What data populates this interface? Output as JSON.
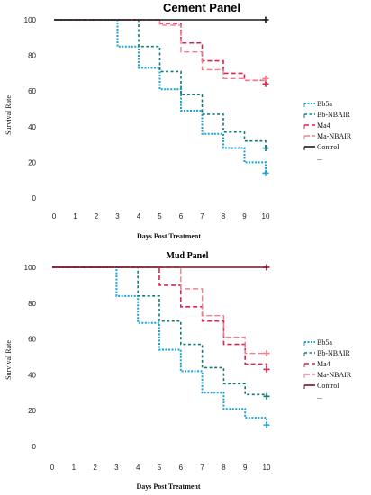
{
  "chart_data": [
    {
      "type": "line",
      "step": true,
      "title": "Cement Panel",
      "xlabel": "Days Post Treatment",
      "ylabel": "Survival Rate",
      "xlim": [
        0,
        10
      ],
      "ylim": [
        0,
        100
      ],
      "xticks": [
        0,
        1,
        2,
        3,
        4,
        5,
        6,
        7,
        8,
        9,
        10
      ],
      "yticks": [
        0,
        20,
        40,
        60,
        80,
        100
      ],
      "legend_position": "right",
      "legend_extra": "...",
      "series": [
        {
          "name": "Bb5a",
          "color": "#1aa3d6",
          "dash": "2,1.5",
          "width": 2,
          "points": [
            [
              0,
              100
            ],
            [
              3,
              85
            ],
            [
              4,
              73
            ],
            [
              5,
              61
            ],
            [
              6,
              49
            ],
            [
              7,
              36
            ],
            [
              8,
              28
            ],
            [
              9,
              20
            ],
            [
              10,
              14
            ]
          ],
          "censor": [
            10,
            14
          ]
        },
        {
          "name": "Bb-NBAIR",
          "color": "#127a78",
          "dash": "3,2.5",
          "width": 1.6,
          "points": [
            [
              0,
              100
            ],
            [
              4,
              85
            ],
            [
              5,
              71
            ],
            [
              6,
              58
            ],
            [
              7,
              47
            ],
            [
              8,
              37
            ],
            [
              9,
              32
            ],
            [
              10,
              28
            ]
          ],
          "censor": [
            10,
            28
          ]
        },
        {
          "name": "Ma4",
          "color": "#d6254f",
          "dash": "5,3",
          "width": 1.6,
          "points": [
            [
              0,
              100
            ],
            [
              5,
              98
            ],
            [
              6,
              87
            ],
            [
              7,
              77
            ],
            [
              8,
              70
            ],
            [
              9,
              66
            ],
            [
              10,
              64
            ]
          ],
          "censor": [
            10,
            64
          ]
        },
        {
          "name": "Ma-NBAIR",
          "color": "#ef7f8c",
          "dash": "6,3",
          "width": 1.4,
          "points": [
            [
              0,
              100
            ],
            [
              5,
              97
            ],
            [
              6,
              82
            ],
            [
              7,
              72
            ],
            [
              8,
              67
            ],
            [
              9,
              66
            ],
            [
              10,
              67
            ]
          ],
          "censor": [
            10,
            67
          ]
        },
        {
          "name": "Control",
          "color": "#1a1a1a",
          "dash": "",
          "width": 1.6,
          "points": [
            [
              0,
              100
            ],
            [
              10,
              100
            ]
          ],
          "censor": [
            10,
            100
          ]
        }
      ]
    },
    {
      "type": "line",
      "step": true,
      "title": "Mud Panel",
      "xlabel": "Days Post Treatment",
      "ylabel": "Survival Rate",
      "xlim": [
        0,
        10
      ],
      "ylim": [
        0,
        100
      ],
      "xticks": [
        0,
        1,
        2,
        3,
        4,
        5,
        6,
        7,
        8,
        9,
        10
      ],
      "yticks": [
        0,
        20,
        40,
        60,
        80,
        100
      ],
      "legend_position": "right",
      "legend_extra": "...",
      "series": [
        {
          "name": "Bb5a",
          "color": "#1aa3d6",
          "dash": "2,1.5",
          "width": 2,
          "points": [
            [
              0,
              100
            ],
            [
              3,
              84
            ],
            [
              4,
              69
            ],
            [
              5,
              54
            ],
            [
              6,
              42
            ],
            [
              7,
              30
            ],
            [
              8,
              21
            ],
            [
              9,
              16
            ],
            [
              10,
              12
            ]
          ],
          "censor": [
            10,
            12
          ]
        },
        {
          "name": "Bb-NBAIR",
          "color": "#127a78",
          "dash": "3,2.5",
          "width": 1.6,
          "points": [
            [
              0,
              100
            ],
            [
              4,
              84
            ],
            [
              5,
              70
            ],
            [
              6,
              57
            ],
            [
              7,
              44
            ],
            [
              8,
              35
            ],
            [
              9,
              29
            ],
            [
              10,
              28
            ]
          ],
          "censor": [
            10,
            28
          ]
        },
        {
          "name": "Ma4",
          "color": "#d6254f",
          "dash": "5,3",
          "width": 1.6,
          "points": [
            [
              0,
              100
            ],
            [
              5,
              90
            ],
            [
              6,
              78
            ],
            [
              7,
              70
            ],
            [
              8,
              57
            ],
            [
              9,
              46
            ],
            [
              10,
              43
            ]
          ],
          "censor": [
            10,
            43
          ]
        },
        {
          "name": "Ma-NBAIR",
          "color": "#ef7f8c",
          "dash": "6,3",
          "width": 1.4,
          "points": [
            [
              0,
              100
            ],
            [
              6,
              88
            ],
            [
              7,
              73
            ],
            [
              8,
              61
            ],
            [
              9,
              52
            ],
            [
              10,
              52
            ]
          ],
          "censor": [
            10,
            52
          ]
        },
        {
          "name": "Control",
          "color": "#7a1020",
          "dash": "",
          "width": 1.6,
          "points": [
            [
              0,
              100
            ],
            [
              10,
              100
            ]
          ],
          "censor": [
            10,
            100
          ]
        }
      ]
    }
  ]
}
